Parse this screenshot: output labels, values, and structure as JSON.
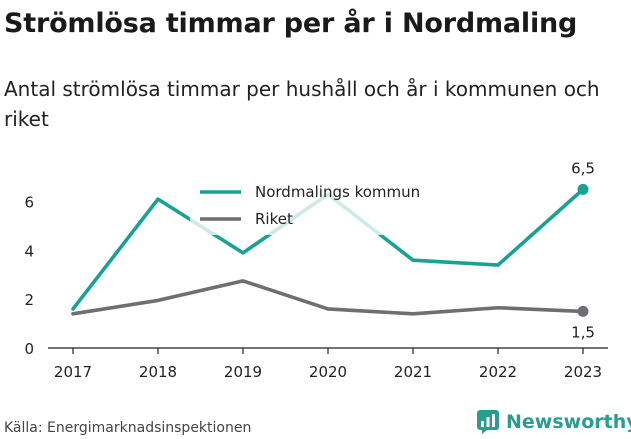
{
  "title": "Strömlösa timmar per år i Nordmaling",
  "subtitle": "Antal strömlösa timmar per hushåll och år i kommunen och riket",
  "source": "Källa: Energimarknadsinspektionen",
  "brand": "Newsworthy",
  "colors": {
    "teal": "#17a294",
    "grey": "#6e6e73",
    "brand": "#2a9d8f"
  },
  "chart_data": {
    "type": "line",
    "x": [
      "2017",
      "2018",
      "2019",
      "2020",
      "2021",
      "2022",
      "2023"
    ],
    "ylim": [
      0,
      7
    ],
    "yticks": [
      0,
      2,
      4,
      6
    ],
    "grid": false,
    "legend_position": "top-center",
    "series": [
      {
        "name": "Nordmalings kommun",
        "color": "#17a294",
        "values": [
          1.6,
          6.1,
          3.9,
          6.3,
          3.6,
          3.4,
          6.5
        ],
        "end_label": "6,5"
      },
      {
        "name": "Riket",
        "color": "#6e6e73",
        "values": [
          1.4,
          1.95,
          2.75,
          1.6,
          1.4,
          1.65,
          1.5
        ],
        "end_label": "1,5"
      }
    ]
  }
}
